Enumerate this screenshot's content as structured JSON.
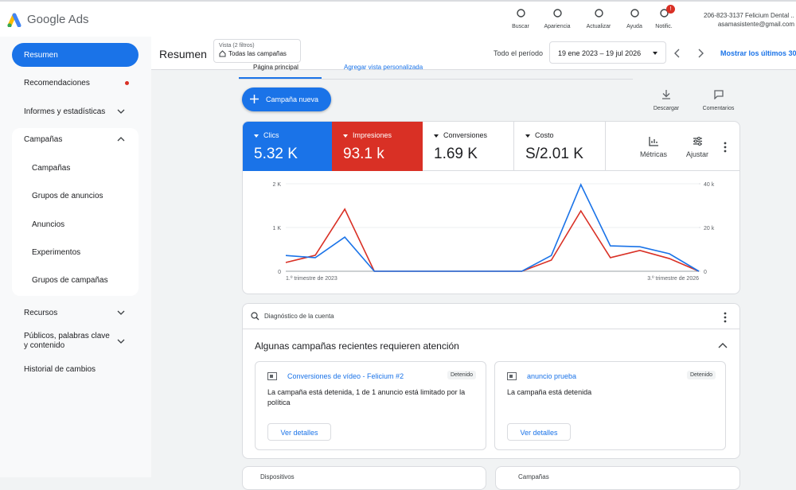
{
  "header": {
    "logo": "Google Ads",
    "tools": [
      "Buscar",
      "Apariencia",
      "Actualizar",
      "Ayuda",
      "Notific."
    ],
    "notif_badge": "!",
    "account_name": "206-823-3137 Felicium Dental ...",
    "account_email": "asamasistente@gmail.com"
  },
  "nav": {
    "items": [
      "Resumen",
      "Recomendaciones",
      "Informes y estadísticas",
      "Campañas",
      "Campañas",
      "Grupos de anuncios",
      "Anuncios",
      "Experimentos",
      "Grupos de campañas",
      "Recursos",
      "Públicos, palabras clave y contenido",
      "Historial de cambios"
    ]
  },
  "toolbar": {
    "page_title": "Resumen",
    "view_label": "Vista (2 filtros)",
    "view_value": "Todas las campañas",
    "period_label": "Todo el período",
    "date_range": "19 ene 2023 – 19 jul 2026",
    "show_last": "Mostrar los últimos 30"
  },
  "tabs": [
    "Página principal",
    "Agregar vista personalizada"
  ],
  "actions": {
    "new_campaign": "Campaña nueva",
    "download": "Descargar",
    "comments": "Comentarios",
    "metrics": "Métricas",
    "adjust": "Ajustar"
  },
  "tiles": [
    {
      "value": "5.32 K"
    },
    {
      "value": "93.1 k"
    },
    {
      "label": "Conversiones",
      "value": "1.69 K"
    },
    {
      "label": "Costo",
      "value": "S/2.01 K"
    }
  ],
  "chart_data": {
    "type": "line",
    "x": [
      "1.º trimestre de 2023",
      null,
      null,
      null,
      null,
      null,
      null,
      null,
      null,
      null,
      null,
      null,
      null,
      null,
      "3.º trimestre de 2026"
    ],
    "series": [
      {
        "name": "Clics",
        "color": "#1a73e8",
        "values": [
          360,
          310,
          780,
          0,
          0,
          0,
          0,
          0,
          0,
          360,
          1980,
          580,
          560,
          400,
          0
        ]
      },
      {
        "name": "Impresiones",
        "color": "#d93025",
        "axis": "y2",
        "values": [
          4000,
          7300,
          28400,
          0,
          0,
          0,
          0,
          0,
          0,
          5100,
          27600,
          6200,
          9500,
          5800,
          0
        ]
      }
    ],
    "ylim": [
      0,
      2000
    ],
    "yticks": [
      0,
      {
        "value": 1000,
        "label": "1 K"
      },
      {
        "value": 2000,
        "label": "2 K"
      }
    ],
    "y2lim": [
      0,
      40000
    ],
    "y2ticks": [
      0,
      {
        "value": 20000,
        "label": "20 k"
      },
      {
        "value": 40000,
        "label": "40 k"
      }
    ],
    "grid": true
  },
  "diagnostics": {
    "title": "Diagnóstico de la cuenta",
    "heading": "Algunas campañas recientes requieren atención",
    "cards": [
      {
        "name": "Conversiones de vídeo - Felicium #2",
        "status": "Detenido",
        "message": "La campaña está detenida, 1 de 1 anuncio está limitado por la política",
        "button": "Ver detalles"
      },
      {
        "name": "anuncio prueba",
        "status": "Detenido",
        "message": "La campaña está detenida",
        "button": "Ver detalles"
      }
    ]
  },
  "bottom_cards": [
    "Dispositivos",
    "Campañas"
  ]
}
